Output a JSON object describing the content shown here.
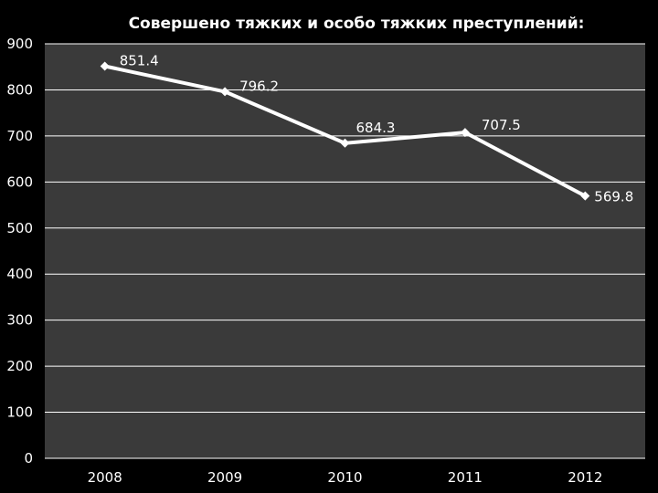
{
  "chart_data": {
    "type": "line",
    "title": "Совершено тяжких и особо тяжких преступлений:",
    "categories": [
      "2008",
      "2009",
      "2010",
      "2011",
      "2012"
    ],
    "series": [
      {
        "values": [
          851.4,
          796.2,
          684.3,
          707.5,
          569.8
        ]
      }
    ],
    "data_labels": [
      "851.4",
      "796.2",
      "684.3",
      "707.5",
      "569.8"
    ],
    "y_ticks": [
      "900",
      "800",
      "700",
      "600",
      "500",
      "400",
      "300",
      "200",
      "100",
      "0"
    ],
    "ylim": [
      0,
      900
    ],
    "grid": true,
    "legend": "none",
    "colors": {
      "background": "#000000",
      "plot_area": "#3a3a3a",
      "grid": "#ffffff",
      "line": "#ffffff",
      "text": "#ffffff"
    }
  }
}
